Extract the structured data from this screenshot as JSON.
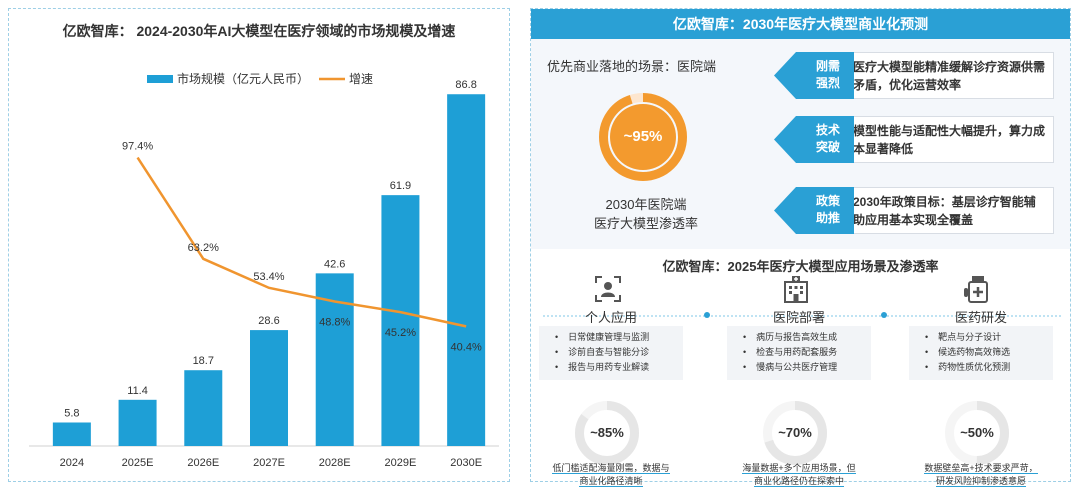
{
  "left": {
    "title": "亿欧智库： 2024-2030年AI大模型在医疗领域的市场规模及增速"
  },
  "chart_data": {
    "type": "bar",
    "title": "亿欧智库： 2024-2030年AI大模型在医疗领域的市场规模及增速",
    "categories": [
      "2024",
      "2025E",
      "2026E",
      "2027E",
      "2028E",
      "2029E",
      "2030E"
    ],
    "series": [
      {
        "name": "市场规模（亿元人民币）",
        "type": "bar",
        "values": [
          5.8,
          11.4,
          18.7,
          28.6,
          42.6,
          61.9,
          86.8
        ],
        "labels": [
          "5.8",
          "11.4",
          "18.7",
          "28.6",
          "42.6",
          "61.9",
          "86.8"
        ],
        "color": "#1e9fd6"
      },
      {
        "name": "增速",
        "type": "line",
        "values": [
          null,
          97.4,
          63.2,
          53.4,
          48.8,
          45.2,
          40.4
        ],
        "labels": [
          "",
          "97.4%",
          "63.2%",
          "53.4%",
          "48.8%",
          "45.2%",
          "40.4%"
        ],
        "color": "#f0952f"
      }
    ],
    "ylim": [
      0,
      95
    ],
    "y2lim": [
      0,
      130
    ],
    "legend": "top-center"
  },
  "right": {
    "header": "亿欧智库：2030年医疗大模型商业化预测",
    "scenario_text": "优先商业落地的场景：医院端",
    "donut": {
      "value": 95,
      "label": "~95%",
      "color": "#f39a2e",
      "track": "#fde6cf"
    },
    "caption_line1": "2030年医院端",
    "caption_line2": "医疗大模型渗透率",
    "drivers": [
      {
        "tag1": "刚需",
        "tag2": "强烈",
        "bullet": "•",
        "text": "医疗大模型能精准缓解诊疗资源供需矛盾，优化运营效率"
      },
      {
        "tag1": "技术",
        "tag2": "突破",
        "bullet": "•",
        "text": "模型性能与适配性大幅提升，算力成本显著降低"
      },
      {
        "tag1": "政策",
        "tag2": "助推",
        "bullet": "•",
        "text": "2030年政策目标：基层诊疗智能辅助应用基本实现全覆盖"
      }
    ],
    "sub_title": "亿欧智库：2025年医疗大模型应用场景及渗透率",
    "scenes": [
      {
        "name": "个人应用",
        "icon": "person-icon",
        "items": [
          "日常健康管理与监测",
          "诊前自查与智能分诊",
          "报告与用药专业解读"
        ],
        "pct_value": 85,
        "pct": "~85%",
        "note1": "低门槛适配海量刚需，数据与",
        "note2": "商业化路径清晰"
      },
      {
        "name": "医院部署",
        "icon": "hospital-icon",
        "items": [
          "病历与报告高效生成",
          "检查与用药配套服务",
          "慢病与公共医疗管理"
        ],
        "pct_value": 70,
        "pct": "~70%",
        "note1": "海量数据+多个应用场景，但",
        "note2": "商业化路径仍在探索中"
      },
      {
        "name": "医药研发",
        "icon": "pill-bottle-icon",
        "items": [
          "靶点与分子设计",
          "候选药物高效筛选",
          "药物性质优化预测"
        ],
        "pct_value": 50,
        "pct": "~50%",
        "note1": "数据壁垒高+技术要求严苛，",
        "note2": "研发风险抑制渗透意愿"
      }
    ]
  }
}
